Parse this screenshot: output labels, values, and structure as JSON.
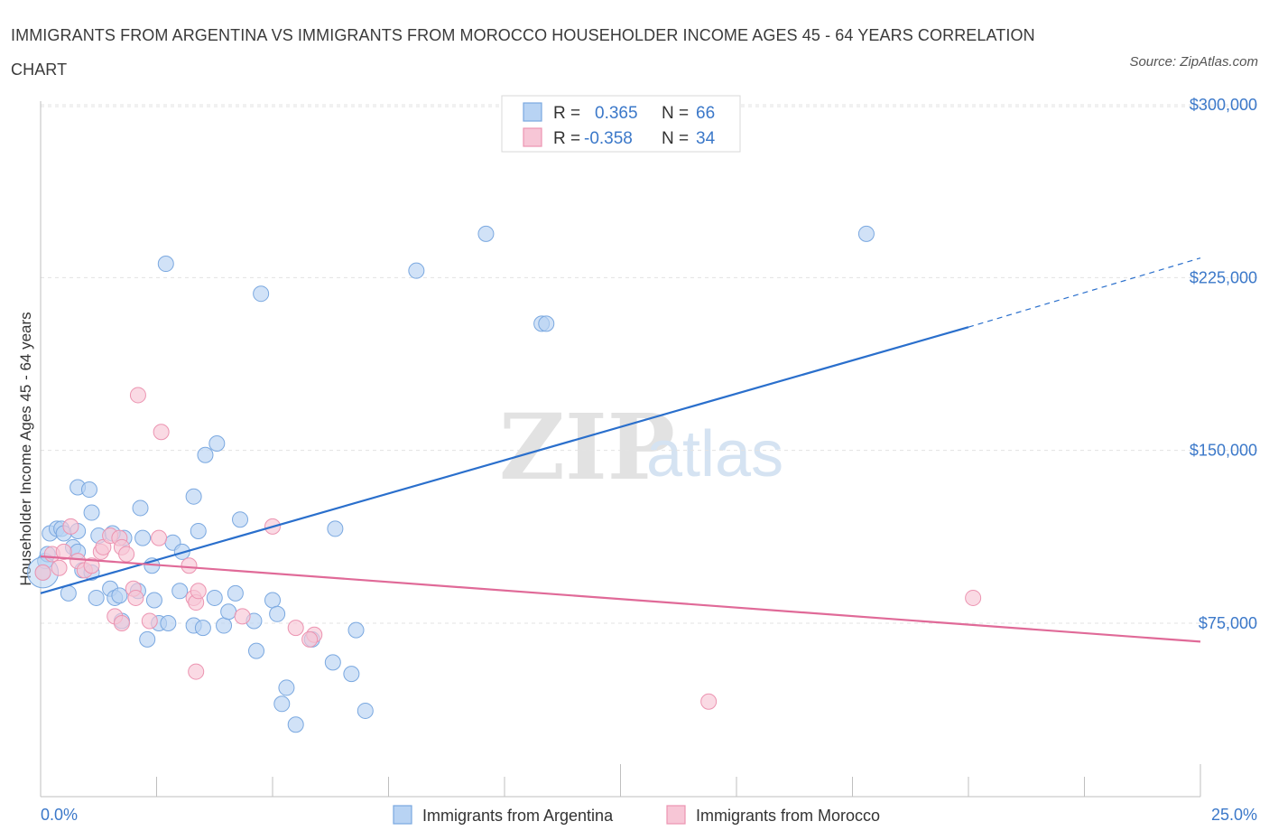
{
  "title": "IMMIGRANTS FROM ARGENTINA VS IMMIGRANTS FROM MOROCCO HOUSEHOLDER INCOME AGES 45 - 64 YEARS CORRELATION CHART",
  "source": "Source: ZipAtlas.com",
  "watermark": {
    "zip": "ZIP",
    "atlas": "atlas"
  },
  "colors": {
    "argentina_fill": "#b8d3f3",
    "argentina_stroke": "#7aa8e0",
    "argentina_line": "#2a6fcc",
    "morocco_fill": "#f7c6d6",
    "morocco_stroke": "#ec94b1",
    "morocco_line": "#e06a98",
    "tick_text": "#3b78c9",
    "grid": "#e3e3e3"
  },
  "legend": {
    "rows": [
      {
        "r_label": "R =",
        "r_value": "0.365",
        "n_label": "N =",
        "n_value": "66"
      },
      {
        "r_label": "R =",
        "r_value": "-0.358",
        "n_label": "N =",
        "n_value": "34"
      }
    ]
  },
  "bottom_legend": [
    "Immigrants from Argentina",
    "Immigrants from Morocco"
  ],
  "chart_data": {
    "type": "scatter",
    "title": "IMMIGRANTS FROM ARGENTINA VS IMMIGRANTS FROM MOROCCO HOUSEHOLDER INCOME AGES 45 - 64 YEARS CORRELATION CHART",
    "xlabel": "",
    "ylabel": "Householder Income Ages 45 - 64 years",
    "xlim": [
      0,
      25
    ],
    "ylim": [
      20000,
      310000
    ],
    "x_tick_labels": [
      "0.0%",
      "25.0%"
    ],
    "y_ticks": [
      75000,
      150000,
      225000,
      300000
    ],
    "y_tick_labels": [
      "$75,000",
      "$150,000",
      "$225,000",
      "$300,000"
    ],
    "grid": true,
    "series": [
      {
        "name": "Immigrants from Argentina",
        "R": 0.365,
        "N": 66,
        "trend": {
          "x0": 0,
          "y0": 88000,
          "x1": 20,
          "y1": 203500,
          "dash_to_x": 25,
          "dash_to_y": 233500
        },
        "points": [
          [
            0.05,
            97000
          ],
          [
            0.1,
            102000
          ],
          [
            0.15,
            105000
          ],
          [
            0.2,
            114000
          ],
          [
            0.35,
            116000
          ],
          [
            0.45,
            116000
          ],
          [
            0.5,
            114000
          ],
          [
            0.7,
            108000
          ],
          [
            0.8,
            115000
          ],
          [
            0.9,
            98000
          ],
          [
            0.8,
            134000
          ],
          [
            1.05,
            133000
          ],
          [
            1.1,
            123000
          ],
          [
            1.25,
            113000
          ],
          [
            1.2,
            86000
          ],
          [
            1.1,
            97000
          ],
          [
            0.6,
            88000
          ],
          [
            0.8,
            106000
          ],
          [
            1.5,
            90000
          ],
          [
            1.6,
            86000
          ],
          [
            1.75,
            76000
          ],
          [
            1.7,
            87000
          ],
          [
            2.1,
            89000
          ],
          [
            2.3,
            68000
          ],
          [
            2.45,
            85000
          ],
          [
            2.55,
            75000
          ],
          [
            2.75,
            75000
          ],
          [
            2.85,
            110000
          ],
          [
            3.0,
            89000
          ],
          [
            3.3,
            74000
          ],
          [
            3.5,
            73000
          ],
          [
            3.75,
            86000
          ],
          [
            3.95,
            74000
          ],
          [
            4.05,
            80000
          ],
          [
            4.2,
            88000
          ],
          [
            4.6,
            76000
          ],
          [
            4.65,
            63000
          ],
          [
            5.0,
            85000
          ],
          [
            5.1,
            79000
          ],
          [
            5.3,
            47000
          ],
          [
            5.2,
            40000
          ],
          [
            5.5,
            31000
          ],
          [
            5.85,
            68000
          ],
          [
            6.3,
            58000
          ],
          [
            6.7,
            53000
          ],
          [
            6.8,
            72000
          ],
          [
            7.0,
            37000
          ],
          [
            2.7,
            231000
          ],
          [
            4.75,
            218000
          ],
          [
            2.15,
            125000
          ],
          [
            3.3,
            130000
          ],
          [
            3.55,
            148000
          ],
          [
            3.8,
            153000
          ],
          [
            4.3,
            120000
          ],
          [
            6.35,
            116000
          ],
          [
            8.1,
            228000
          ],
          [
            9.6,
            244000
          ],
          [
            10.8,
            205000
          ],
          [
            10.9,
            205000
          ],
          [
            17.8,
            244000
          ],
          [
            2.2,
            112000
          ],
          [
            2.4,
            100000
          ],
          [
            3.05,
            106000
          ],
          [
            1.8,
            112000
          ],
          [
            3.4,
            115000
          ],
          [
            1.55,
            114000
          ]
        ]
      },
      {
        "name": "Immigrants from Morocco",
        "R": -0.358,
        "N": 34,
        "trend": {
          "x0": 0,
          "y0": 104000,
          "x1": 25,
          "y1": 67000
        },
        "points": [
          [
            0.05,
            97000
          ],
          [
            0.25,
            105000
          ],
          [
            0.4,
            99000
          ],
          [
            0.5,
            106000
          ],
          [
            0.65,
            117000
          ],
          [
            0.8,
            102000
          ],
          [
            0.95,
            98000
          ],
          [
            1.1,
            100000
          ],
          [
            1.3,
            106000
          ],
          [
            1.35,
            108000
          ],
          [
            1.5,
            113000
          ],
          [
            1.7,
            112000
          ],
          [
            1.75,
            108000
          ],
          [
            1.85,
            105000
          ],
          [
            2.0,
            90000
          ],
          [
            2.05,
            86000
          ],
          [
            2.35,
            76000
          ],
          [
            2.55,
            112000
          ],
          [
            2.1,
            174000
          ],
          [
            2.6,
            158000
          ],
          [
            1.6,
            78000
          ],
          [
            1.75,
            75000
          ],
          [
            3.2,
            100000
          ],
          [
            3.3,
            86000
          ],
          [
            3.35,
            84000
          ],
          [
            3.4,
            89000
          ],
          [
            3.35,
            54000
          ],
          [
            4.35,
            78000
          ],
          [
            5.0,
            117000
          ],
          [
            5.5,
            73000
          ],
          [
            5.9,
            70000
          ],
          [
            5.8,
            68000
          ],
          [
            14.4,
            41000
          ],
          [
            20.1,
            86000
          ]
        ]
      }
    ]
  }
}
